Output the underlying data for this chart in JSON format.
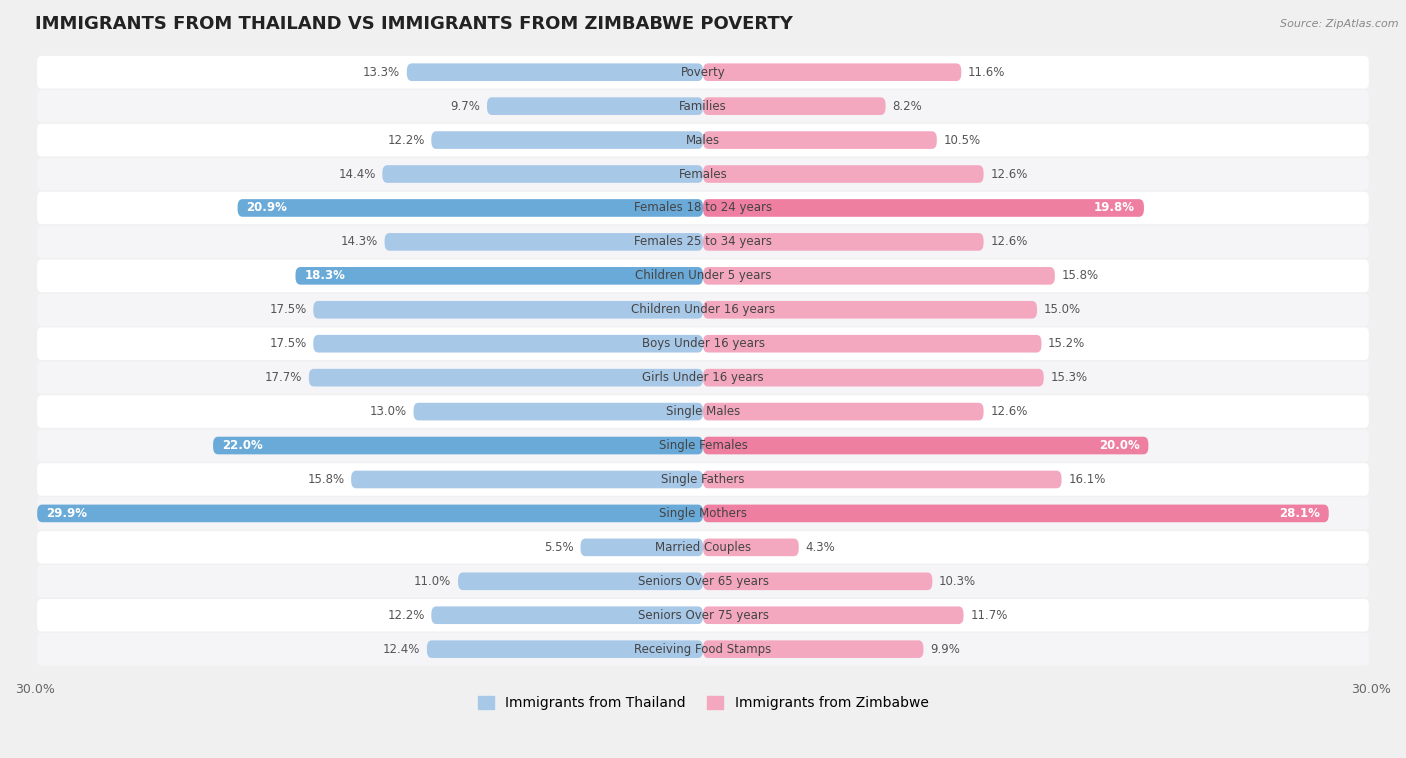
{
  "title": "IMMIGRANTS FROM THAILAND VS IMMIGRANTS FROM ZIMBABWE POVERTY",
  "source": "Source: ZipAtlas.com",
  "categories": [
    "Poverty",
    "Families",
    "Males",
    "Females",
    "Females 18 to 24 years",
    "Females 25 to 34 years",
    "Children Under 5 years",
    "Children Under 16 years",
    "Boys Under 16 years",
    "Girls Under 16 years",
    "Single Males",
    "Single Females",
    "Single Fathers",
    "Single Mothers",
    "Married Couples",
    "Seniors Over 65 years",
    "Seniors Over 75 years",
    "Receiving Food Stamps"
  ],
  "thailand_values": [
    13.3,
    9.7,
    12.2,
    14.4,
    20.9,
    14.3,
    18.3,
    17.5,
    17.5,
    17.7,
    13.0,
    22.0,
    15.8,
    29.9,
    5.5,
    11.0,
    12.2,
    12.4
  ],
  "zimbabwe_values": [
    11.6,
    8.2,
    10.5,
    12.6,
    19.8,
    12.6,
    15.8,
    15.0,
    15.2,
    15.3,
    12.6,
    20.0,
    16.1,
    28.1,
    4.3,
    10.3,
    11.7,
    9.9
  ],
  "thailand_color": "#a8c8e8",
  "zimbabwe_color": "#f4a8c0",
  "thailand_highlight_indices": [
    4,
    6,
    11,
    13
  ],
  "zimbabwe_highlight_indices": [
    4,
    11,
    13
  ],
  "thailand_highlight_color": "#6aaad8",
  "zimbabwe_highlight_color": "#ee7fa0",
  "row_color_odd": "#f5f5f8",
  "row_color_even": "#ffffff",
  "background_color": "#f0f0f0",
  "axis_max": 30.0,
  "legend_label_thailand": "Immigrants from Thailand",
  "legend_label_zimbabwe": "Immigrants from Zimbabwe",
  "title_fontsize": 13,
  "label_fontsize": 8.5,
  "value_fontsize": 8.5
}
